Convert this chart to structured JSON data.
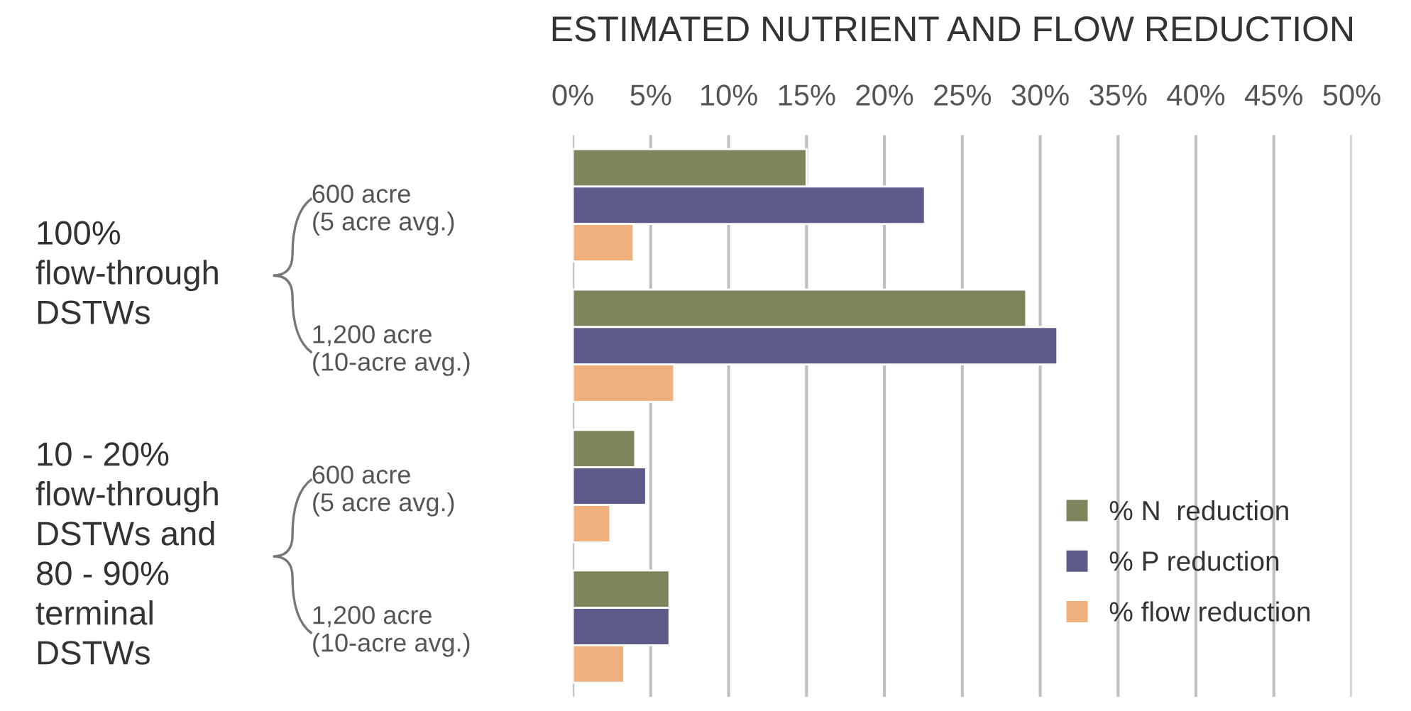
{
  "chart_data": {
    "type": "bar",
    "orientation": "horizontal",
    "title": "ESTIMATED NUTRIENT AND FLOW REDUCTION",
    "categories": [
      "600 acre\n(5 acre avg.)",
      "1,200 acre\n(10-acre avg.)",
      "600 acre\n(5 acre avg.)",
      "1,200 acre\n(10-acre avg.)"
    ],
    "series": [
      {
        "name": "% N  reduction",
        "color": "#7f845c",
        "values": [
          15.0,
          29.1,
          4.0,
          6.2
        ]
      },
      {
        "name": "% P reduction",
        "color": "#5d5b89",
        "values": [
          22.6,
          31.1,
          4.7,
          6.2
        ]
      },
      {
        "name": "% flow reduction",
        "color": "#f0b07e",
        "values": [
          3.9,
          6.5,
          2.4,
          3.3
        ]
      }
    ],
    "xlim": [
      0,
      50
    ],
    "xticks": [
      {
        "value": 0,
        "label": "0%"
      },
      {
        "value": 5,
        "label": "5%"
      },
      {
        "value": 10,
        "label": "10%"
      },
      {
        "value": 15,
        "label": "15%"
      },
      {
        "value": 20,
        "label": "20%"
      },
      {
        "value": 25,
        "label": "25%"
      },
      {
        "value": 30,
        "label": "30%"
      },
      {
        "value": 35,
        "label": "35%"
      },
      {
        "value": 40,
        "label": "40%"
      },
      {
        "value": 45,
        "label": "45%"
      },
      {
        "value": 50,
        "label": "50%"
      }
    ],
    "grid": "x",
    "legend": "bottom right",
    "annotations": [
      "100%\nflow-through\nDSTWs",
      "10 - 20%\nflow-through\nDSTWs and\n80 - 90%\nterminal\nDSTWs"
    ]
  }
}
